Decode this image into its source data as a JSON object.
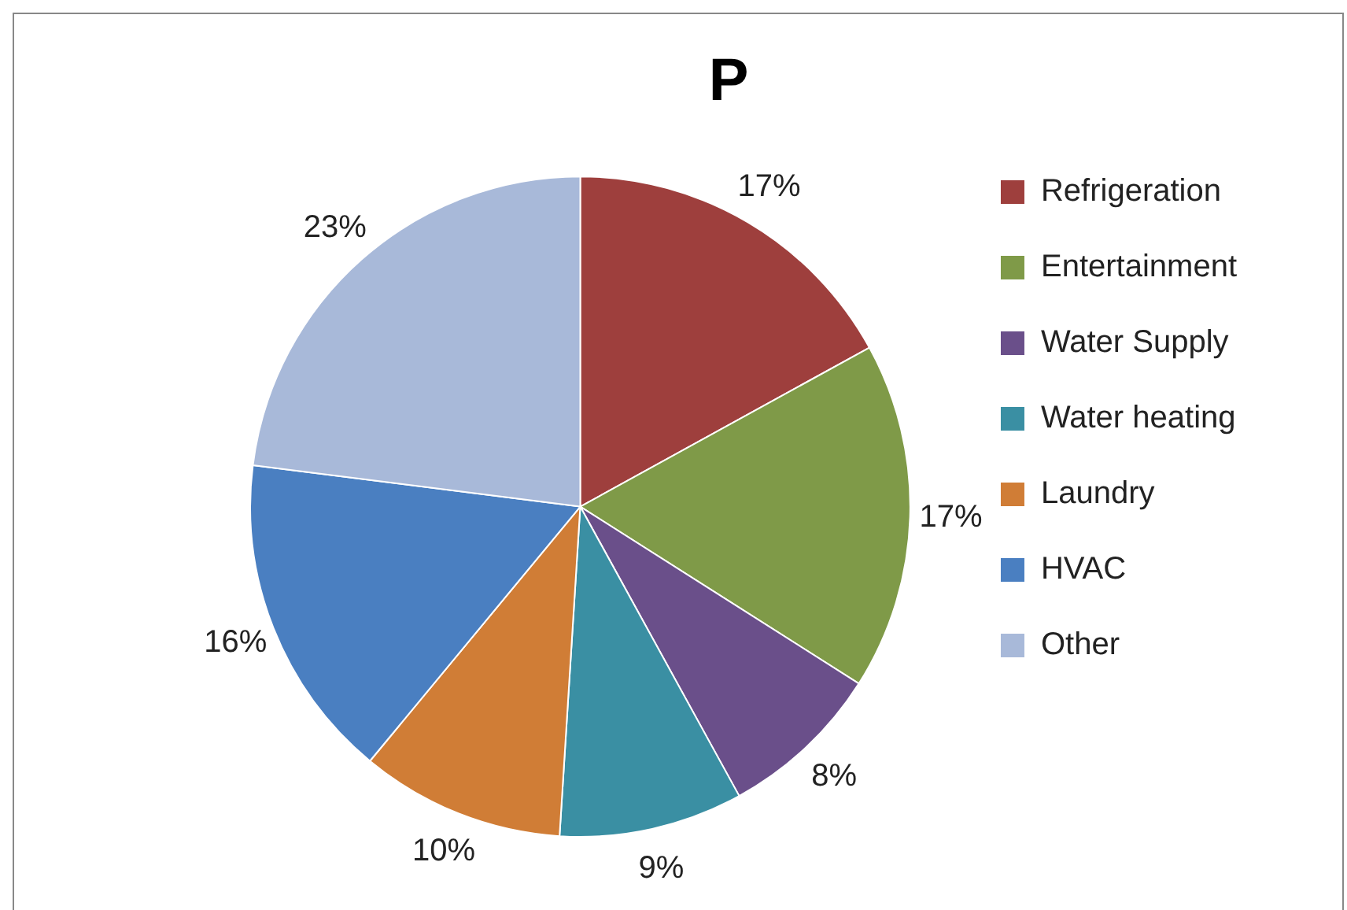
{
  "chart_data": {
    "type": "pie",
    "title": "P",
    "categories": [
      "Refrigeration",
      "Entertainment",
      "Water Supply",
      "Water heating",
      "Laundry",
      "HVAC",
      "Other"
    ],
    "values": [
      17,
      17,
      8,
      9,
      10,
      16,
      23
    ],
    "value_labels": [
      "17%",
      "17%",
      "8%",
      "9%",
      "10%",
      "16%",
      "23%"
    ],
    "colors": [
      "#9e3f3d",
      "#7f9a48",
      "#6a4f8a",
      "#3a8fa3",
      "#d07d36",
      "#4a7fc1",
      "#a8b9d9"
    ],
    "legend": "right"
  }
}
